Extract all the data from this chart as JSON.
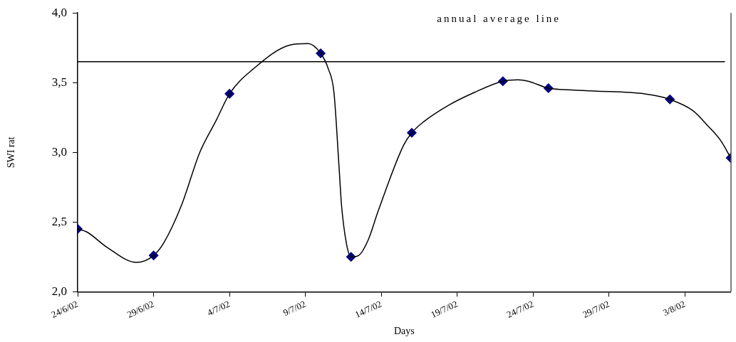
{
  "chart_data": {
    "type": "line",
    "xlabel": "Days",
    "ylabel": "SWI rat",
    "xlim": [
      "--06-24",
      "--08-06"
    ],
    "xticks": [
      {
        "value": "--06-24",
        "label": "24/6/02"
      },
      {
        "value": "--06-29",
        "label": "29/6/02"
      },
      {
        "value": "--07-04",
        "label": "4/7/02"
      },
      {
        "value": "--07-09",
        "label": "9/7/02"
      },
      {
        "value": "--07-14",
        "label": "14/7/02"
      },
      {
        "value": "--07-19",
        "label": "19/7/02"
      },
      {
        "value": "--07-24",
        "label": "24/7/02"
      },
      {
        "value": "--07-29",
        "label": "29/7/02"
      },
      {
        "value": "--08-03",
        "label": "3/8/02"
      }
    ],
    "ylim": [
      2,
      4
    ],
    "yticks": [
      {
        "value": 2,
        "label": "2,0"
      },
      {
        "value": 2.5,
        "label": "2,5"
      },
      {
        "value": 3,
        "label": "3,0"
      },
      {
        "value": 3.5,
        "label": "3,5"
      },
      {
        "value": 4,
        "label": "4,0"
      }
    ],
    "grid": false,
    "legend": false,
    "ref_lines": [
      {
        "axis": "y",
        "value": 3.65,
        "label": "annual average line",
        "color": "#000000"
      }
    ],
    "series": [
      {
        "type": "line",
        "color": "#000000",
        "marker": "none",
        "line_style": "solid",
        "x": [
          "--06-24",
          "--06-24T14:00",
          "--06-25T22:00",
          "--06-27T21:00",
          "--06-29",
          "--06-29T16:00",
          "--06-30T20:00",
          "--07-02T01:00",
          "--07-03T03:00",
          "--07-04",
          "--07-05T14:00",
          "--07-08",
          "--07-09T04:00",
          "--07-10",
          "--07-10T12:00",
          "--07-10T21:00",
          "--07-11T05:00",
          "--07-11T09:00",
          "--07-11T17:00",
          "--07-12",
          "--07-12T12:00",
          "--07-13T03:00",
          "--07-13T19:00",
          "--07-15T11:00",
          "--07-16",
          "--07-16T19:00",
          "--07-18T11:00",
          "--07-20T03:00",
          "--07-22",
          "--07-23",
          "--07-23T16:00",
          "--07-25",
          "--07-26",
          "--07-28",
          "--07-31T08:00",
          "--08-01T08:00",
          "--08-02",
          "--08-03T12:00",
          "--08-04T12:00",
          "--08-05T09:00",
          "--08-06"
        ],
        "values": [
          2.45,
          2.43,
          2.32,
          2.21,
          2.26,
          2.35,
          2.62,
          3.0,
          3.23,
          3.42,
          3.6,
          3.77,
          3.78,
          3.71,
          3.6,
          3.43,
          2.9,
          2.62,
          2.34,
          2.25,
          2.26,
          2.37,
          2.58,
          3.05,
          3.14,
          3.22,
          3.34,
          3.43,
          3.51,
          3.52,
          3.51,
          3.46,
          3.45,
          3.44,
          3.42,
          3.4,
          3.38,
          3.3,
          3.19,
          3.08,
          2.96
        ]
      },
      {
        "type": "scatter",
        "color": "#000080",
        "marker": "diamond",
        "x": [
          "--06-24",
          "--06-29",
          "--07-04",
          "--07-10",
          "--07-12",
          "--07-16",
          "--07-22",
          "--07-25",
          "--08-02",
          "--08-06"
        ],
        "values": [
          2.45,
          2.26,
          3.42,
          3.71,
          2.25,
          3.14,
          3.51,
          3.46,
          3.38,
          2.96
        ]
      }
    ]
  }
}
